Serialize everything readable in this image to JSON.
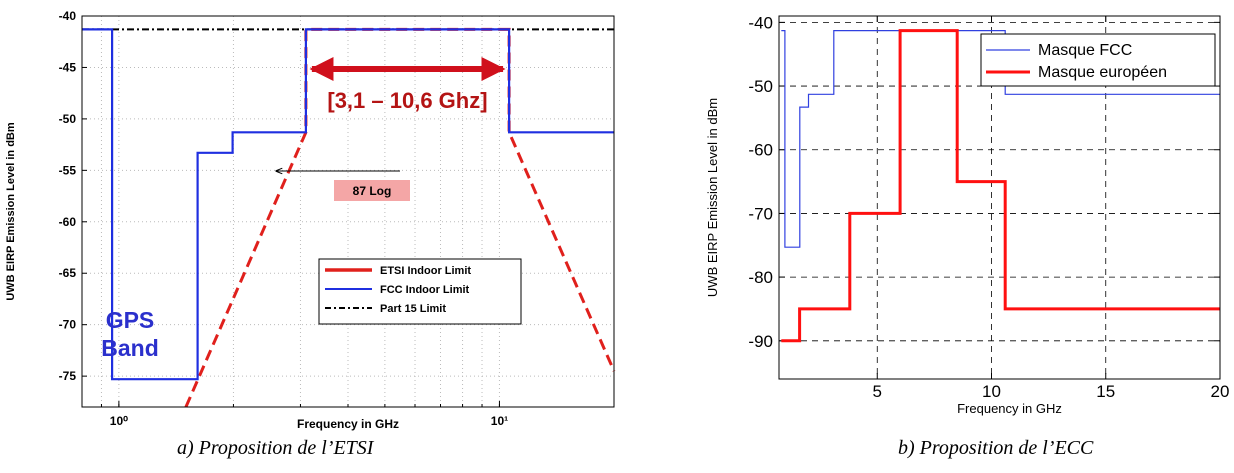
{
  "chart_data": [
    {
      "type": "line",
      "xscale": "log",
      "xlim": [
        0.8,
        20
      ],
      "ylim": [
        -78,
        -40
      ],
      "xticks": [
        {
          "value": 1,
          "label": "10⁰"
        },
        {
          "value": 10,
          "label": "10¹"
        }
      ],
      "yticks": [
        -40,
        -45,
        -50,
        -55,
        -60,
        -65,
        -70,
        -75
      ],
      "xlabel": "Frequency in GHz",
      "ylabel": "UWB EIRP Emission Level in dBm",
      "grid": true,
      "legend_position": "bottom-right",
      "legend": [
        "ETSI Indoor Limit",
        "FCC Indoor Limit",
        "Part 15 Limit"
      ],
      "series": [
        {
          "name": "ETSI Indoor Limit",
          "color": "#e0201c",
          "x": [
            1.5,
            3.1,
            3.1,
            10.6,
            10.6,
            20
          ],
          "y": [
            -78,
            -51.3,
            -41.3,
            -41.3,
            -51.3,
            -74.5
          ]
        },
        {
          "name": "FCC Indoor Limit",
          "color": "#1f2fe0",
          "x": [
            0.8,
            0.96,
            0.96,
            1.61,
            1.61,
            1.99,
            1.99,
            3.1,
            3.1,
            10.6,
            10.6,
            20
          ],
          "y": [
            -41.3,
            -41.3,
            -75.3,
            -75.3,
            -53.3,
            -53.3,
            -51.3,
            -51.3,
            -41.3,
            -41.3,
            -51.3,
            -51.3
          ]
        },
        {
          "name": "Part 15 Limit",
          "color": "#000000",
          "x": [
            0.8,
            20
          ],
          "y": [
            -41.3,
            -41.3
          ]
        }
      ],
      "annotations": {
        "band": "[3,1 – 10,6 Ghz]",
        "gps_line1": "GPS",
        "gps_line2": "Band",
        "slope": "87 Log"
      }
    },
    {
      "type": "line",
      "xlim": [
        0.7,
        20
      ],
      "ylim": [
        -96,
        -39
      ],
      "xticks": [
        5,
        10,
        15,
        20
      ],
      "yticks": [
        -40,
        -50,
        -60,
        -70,
        -80,
        -90
      ],
      "xlabel": "Frequency in GHz",
      "ylabel": "UWB EIRP Emission Level in dBm",
      "grid": true,
      "legend_position": "top-right",
      "legend": [
        "Masque FCC",
        "Masque européen"
      ],
      "series": [
        {
          "name": "Masque FCC",
          "color": "#3040e0",
          "x": [
            0.8,
            0.96,
            0.96,
            1.61,
            1.61,
            1.99,
            1.99,
            3.1,
            3.1,
            10.6,
            10.6,
            20
          ],
          "y": [
            -41.3,
            -41.3,
            -75.3,
            -75.3,
            -53.3,
            -53.3,
            -51.3,
            -51.3,
            -41.3,
            -41.3,
            -51.3,
            -51.3
          ]
        },
        {
          "name": "Masque européen",
          "color": "#ff1010",
          "x": [
            0.8,
            1.6,
            1.6,
            3.8,
            3.8,
            6.0,
            6.0,
            8.5,
            8.5,
            10.6,
            10.6,
            20
          ],
          "y": [
            -90,
            -90,
            -85,
            -85,
            -70,
            -70,
            -41.3,
            -41.3,
            -65,
            -65,
            -85,
            -85
          ]
        }
      ]
    }
  ],
  "captions": [
    "a) Proposition de l’ETSI",
    "b) Proposition de l’ECC"
  ]
}
